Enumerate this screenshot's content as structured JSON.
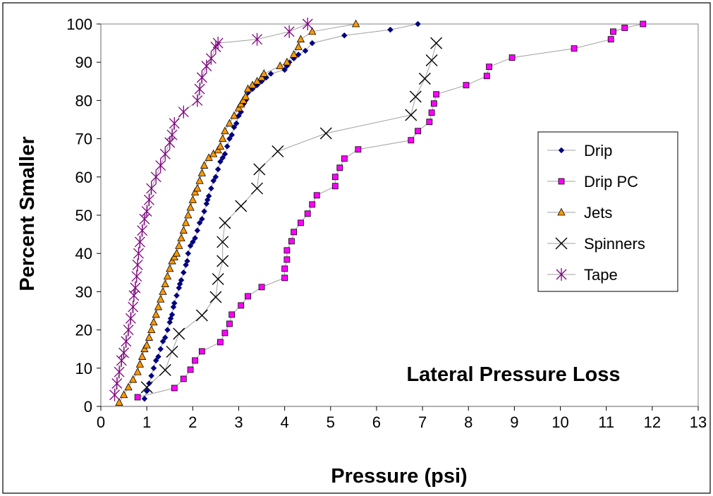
{
  "chart_data": {
    "type": "scatter",
    "title": "Lateral Pressure Loss",
    "xlabel": "Pressure (psi)",
    "ylabel": "Percent Smaller",
    "xlim": [
      0,
      13
    ],
    "ylim": [
      0,
      100
    ],
    "xticks": [
      "0",
      "1",
      "2",
      "3",
      "4",
      "5",
      "6",
      "7",
      "8",
      "9",
      "10",
      "11",
      "12",
      "13"
    ],
    "yticks": [
      "0",
      "10",
      "20",
      "30",
      "40",
      "50",
      "60",
      "70",
      "80",
      "90",
      "100"
    ],
    "grid": false,
    "legend": "right",
    "colors": {
      "drip": "#000080",
      "drip_pc": "#ff00ff",
      "jets": "#ff9900",
      "spinners": "#000000",
      "tape": "#800080",
      "connector": "#a0a0a0"
    },
    "series": [
      {
        "name": "Drip",
        "marker": "diamond",
        "x": [
          0.95,
          1.0,
          1.05,
          1.1,
          1.15,
          1.2,
          1.25,
          1.3,
          1.35,
          1.4,
          1.45,
          1.5,
          1.52,
          1.55,
          1.58,
          1.6,
          1.65,
          1.7,
          1.72,
          1.75,
          1.8,
          1.85,
          1.88,
          1.9,
          1.95,
          2.0,
          2.05,
          2.1,
          2.15,
          2.2,
          2.25,
          2.3,
          2.32,
          2.35,
          2.4,
          2.45,
          2.5,
          2.55,
          2.6,
          2.65,
          2.7,
          2.75,
          2.8,
          2.85,
          2.9,
          2.95,
          3.0,
          3.05,
          3.1,
          3.15,
          3.2,
          3.3,
          3.4,
          3.5,
          3.6,
          3.7,
          4.0,
          4.05,
          4.1,
          4.2,
          4.3,
          4.45,
          4.6,
          5.3,
          6.3,
          6.9
        ],
        "y": [
          2,
          4,
          6,
          8,
          10,
          12,
          13,
          15,
          17,
          18,
          20,
          22,
          23,
          24,
          26,
          27,
          29,
          31,
          32,
          33,
          35,
          37,
          38,
          40,
          42,
          43,
          44,
          46,
          48,
          49,
          51,
          53,
          54,
          55,
          57,
          59,
          60,
          62,
          64,
          65,
          66,
          68,
          70,
          71,
          73,
          74,
          76,
          77,
          79,
          80,
          82,
          83,
          84,
          85,
          86,
          87,
          88,
          89,
          90,
          91,
          92,
          93,
          95,
          97,
          98.5,
          100
        ]
      },
      {
        "name": "Drip PC",
        "marker": "square",
        "x": [
          0.8,
          1.6,
          1.8,
          1.95,
          2.05,
          2.2,
          2.6,
          2.7,
          2.8,
          2.85,
          3.05,
          3.2,
          3.5,
          4.0,
          4.0,
          4.05,
          4.05,
          4.15,
          4.2,
          4.35,
          4.5,
          4.6,
          4.7,
          5.1,
          5.1,
          5.2,
          5.3,
          5.6,
          6.75,
          6.9,
          7.15,
          7.2,
          7.25,
          7.3,
          7.95,
          8.4,
          8.45,
          8.95,
          10.3,
          11.1,
          11.15,
          11.4,
          11.8
        ],
        "y": [
          2.4,
          4.8,
          7.2,
          9.6,
          12,
          14.4,
          16.8,
          19.2,
          21.6,
          24,
          26.4,
          28.8,
          31.2,
          33.6,
          36,
          38.4,
          40.8,
          43.2,
          45.6,
          48,
          50.4,
          52.8,
          55.2,
          57.6,
          60,
          62.4,
          64.8,
          67.2,
          69.6,
          72,
          74.4,
          76.8,
          79.2,
          81.6,
          84,
          86.4,
          88.8,
          91.2,
          93.6,
          96,
          98,
          99,
          100
        ]
      },
      {
        "name": "Jets",
        "marker": "triangle",
        "x": [
          0.4,
          0.5,
          0.6,
          0.7,
          0.8,
          0.85,
          0.9,
          0.95,
          1.0,
          1.05,
          1.1,
          1.15,
          1.2,
          1.25,
          1.3,
          1.35,
          1.4,
          1.45,
          1.5,
          1.55,
          1.6,
          1.65,
          1.7,
          1.75,
          1.8,
          1.85,
          1.9,
          1.95,
          2.0,
          2.05,
          2.1,
          2.15,
          2.2,
          2.25,
          2.35,
          2.45,
          2.55,
          2.6,
          2.65,
          2.7,
          2.8,
          2.9,
          3.0,
          3.05,
          3.1,
          3.15,
          3.2,
          3.3,
          3.4,
          3.5,
          3.55,
          3.9,
          4.05,
          4.2,
          4.3,
          4.35,
          4.6,
          5.55
        ],
        "y": [
          1,
          3,
          5,
          7,
          9,
          11,
          13,
          15,
          16,
          18,
          20,
          22,
          24,
          26,
          28,
          30,
          32,
          34,
          36,
          38,
          39,
          40,
          42,
          44,
          46,
          48,
          50,
          52,
          54,
          56,
          57,
          59,
          61,
          63,
          65,
          66,
          67,
          68,
          70,
          72,
          74,
          76,
          78,
          79,
          80,
          81,
          83,
          84,
          85,
          86,
          87,
          89,
          90,
          92,
          94,
          96,
          98,
          100
        ]
      },
      {
        "name": "Spinners",
        "marker": "x",
        "x": [
          1.0,
          1.4,
          1.55,
          1.7,
          2.2,
          2.5,
          2.55,
          2.65,
          2.65,
          2.7,
          3.05,
          3.4,
          3.45,
          3.85,
          4.9,
          6.75,
          6.85,
          7.05,
          7.2,
          7.3
        ],
        "y": [
          5,
          9.5,
          14.3,
          19,
          23.8,
          28.6,
          33.3,
          38,
          43,
          48,
          52.4,
          57,
          62,
          66.7,
          71.4,
          76.2,
          81,
          85.7,
          90.5,
          95
        ]
      },
      {
        "name": "Tape",
        "marker": "asterisk",
        "x": [
          0.3,
          0.35,
          0.4,
          0.45,
          0.5,
          0.55,
          0.6,
          0.65,
          0.7,
          0.72,
          0.75,
          0.78,
          0.8,
          0.82,
          0.85,
          0.9,
          0.95,
          1.0,
          1.05,
          1.1,
          1.2,
          1.3,
          1.4,
          1.5,
          1.55,
          1.6,
          1.8,
          2.1,
          2.15,
          2.2,
          2.3,
          2.4,
          2.5,
          2.55,
          3.4,
          4.1,
          4.5
        ],
        "y": [
          3,
          6,
          9,
          12,
          14,
          17,
          20,
          23,
          26,
          29,
          31,
          34,
          37,
          40,
          43,
          46,
          49,
          51,
          54,
          57,
          60,
          63,
          66,
          69,
          71,
          74,
          77,
          80,
          83,
          86,
          89,
          91,
          94,
          95,
          96,
          98,
          100
        ]
      }
    ]
  }
}
